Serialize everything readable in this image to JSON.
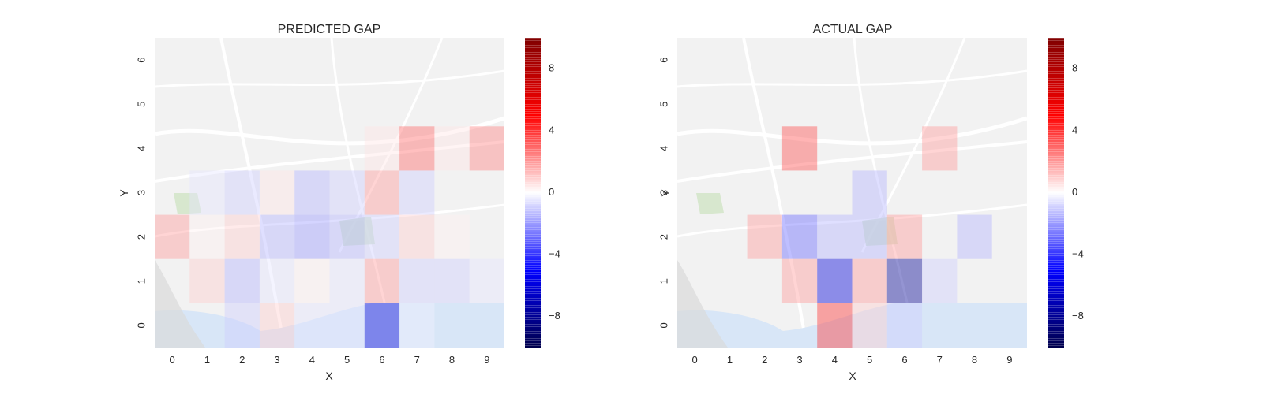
{
  "chart_data": [
    {
      "type": "heatmap",
      "title": "PREDICTED GAP",
      "xlabel": "X",
      "ylabel": "Y",
      "x_ticks": [
        "0",
        "1",
        "2",
        "3",
        "4",
        "5",
        "6",
        "7",
        "8",
        "9"
      ],
      "y_ticks": [
        "0",
        "1",
        "2",
        "3",
        "4",
        "5",
        "6"
      ],
      "colorbar_ticks": [
        -8,
        -4,
        0,
        4,
        8
      ],
      "colorbar_range": [
        -10,
        10
      ],
      "colormap": "seismic",
      "background": "map of Porto (Portugal)",
      "grid": false,
      "cells": [
        {
          "x": 0,
          "y": 2,
          "value": 2.0
        },
        {
          "x": 1,
          "y": 2,
          "value": 0.3
        },
        {
          "x": 2,
          "y": 2,
          "value": 1.0
        },
        {
          "x": 3,
          "y": 2,
          "value": -1.5
        },
        {
          "x": 4,
          "y": 2,
          "value": -2.0
        },
        {
          "x": 5,
          "y": 2,
          "value": -1.5
        },
        {
          "x": 6,
          "y": 2,
          "value": -1.0
        },
        {
          "x": 7,
          "y": 2,
          "value": 1.0
        },
        {
          "x": 8,
          "y": 2,
          "value": 0.3
        },
        {
          "x": 1,
          "y": 3,
          "value": -0.5
        },
        {
          "x": 2,
          "y": 3,
          "value": -1.0
        },
        {
          "x": 3,
          "y": 3,
          "value": 0.5
        },
        {
          "x": 4,
          "y": 3,
          "value": -1.5
        },
        {
          "x": 5,
          "y": 3,
          "value": -1.0
        },
        {
          "x": 6,
          "y": 3,
          "value": 2.0
        },
        {
          "x": 7,
          "y": 3,
          "value": -1.0
        },
        {
          "x": 6,
          "y": 4,
          "value": 0.5
        },
        {
          "x": 7,
          "y": 4,
          "value": 3.0
        },
        {
          "x": 8,
          "y": 4,
          "value": 0.5
        },
        {
          "x": 9,
          "y": 4,
          "value": 2.5
        },
        {
          "x": 1,
          "y": 1,
          "value": 1.0
        },
        {
          "x": 2,
          "y": 1,
          "value": -1.5
        },
        {
          "x": 3,
          "y": 1,
          "value": -0.5
        },
        {
          "x": 4,
          "y": 1,
          "value": 0.3
        },
        {
          "x": 5,
          "y": 1,
          "value": -0.5
        },
        {
          "x": 6,
          "y": 1,
          "value": 2.0
        },
        {
          "x": 7,
          "y": 1,
          "value": -1.0
        },
        {
          "x": 8,
          "y": 1,
          "value": -1.0
        },
        {
          "x": 9,
          "y": 1,
          "value": -0.5
        },
        {
          "x": 2,
          "y": 0,
          "value": -1.0
        },
        {
          "x": 3,
          "y": 0,
          "value": 1.0
        },
        {
          "x": 4,
          "y": 0,
          "value": -0.5
        },
        {
          "x": 5,
          "y": 0,
          "value": -0.5
        },
        {
          "x": 6,
          "y": 0,
          "value": -6.0
        },
        {
          "x": 7,
          "y": 0,
          "value": -0.3
        }
      ]
    },
    {
      "type": "heatmap",
      "title": "ACTUAL GAP",
      "xlabel": "X",
      "ylabel": "Y",
      "x_ticks": [
        "0",
        "1",
        "2",
        "3",
        "4",
        "5",
        "6",
        "7",
        "8",
        "9"
      ],
      "y_ticks": [
        "0",
        "1",
        "2",
        "3",
        "4",
        "5",
        "6"
      ],
      "colorbar_ticks": [
        -8,
        -4,
        0,
        4,
        8
      ],
      "colorbar_range": [
        -10,
        10
      ],
      "colormap": "seismic",
      "background": "map of Porto (Portugal)",
      "grid": false,
      "cells": [
        {
          "x": 3,
          "y": 4,
          "value": 3.5
        },
        {
          "x": 7,
          "y": 4,
          "value": 2.0
        },
        {
          "x": 5,
          "y": 3,
          "value": -1.5
        },
        {
          "x": 2,
          "y": 2,
          "value": 2.0
        },
        {
          "x": 3,
          "y": 2,
          "value": -3.0
        },
        {
          "x": 4,
          "y": 2,
          "value": -1.5
        },
        {
          "x": 5,
          "y": 2,
          "value": -1.5
        },
        {
          "x": 6,
          "y": 2,
          "value": 2.0
        },
        {
          "x": 8,
          "y": 2,
          "value": -1.5
        },
        {
          "x": 3,
          "y": 1,
          "value": 2.0
        },
        {
          "x": 4,
          "y": 1,
          "value": -6.0
        },
        {
          "x": 5,
          "y": 1,
          "value": 2.0
        },
        {
          "x": 6,
          "y": 1,
          "value": -8.0
        },
        {
          "x": 7,
          "y": 1,
          "value": -1.0
        },
        {
          "x": 4,
          "y": 0,
          "value": 4.0
        },
        {
          "x": 5,
          "y": 0,
          "value": 1.0
        },
        {
          "x": 6,
          "y": 0,
          "value": -1.0
        }
      ]
    }
  ]
}
